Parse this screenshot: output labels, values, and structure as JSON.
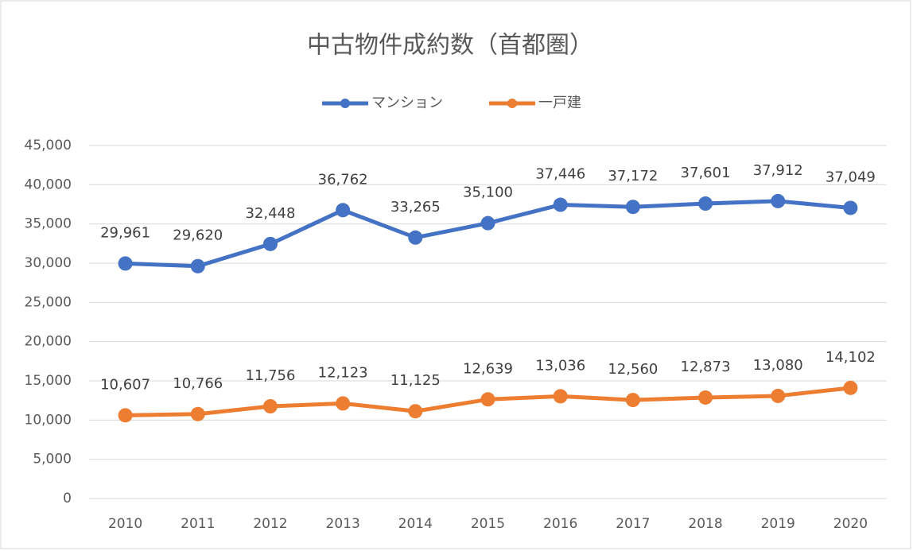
{
  "chart_data": {
    "type": "line",
    "title": "中古物件成約数（首都圏）",
    "categories": [
      "2010",
      "2011",
      "2012",
      "2013",
      "2014",
      "2015",
      "2016",
      "2017",
      "2018",
      "2019",
      "2020"
    ],
    "series": [
      {
        "name": "マンション",
        "color": "#4472c4",
        "values": [
          29961,
          29620,
          32448,
          36762,
          33265,
          35100,
          37446,
          37172,
          37601,
          37912,
          37049
        ],
        "value_labels": [
          "29,961",
          "29,620",
          "32,448",
          "36,762",
          "33,265",
          "35,100",
          "37,446",
          "37,172",
          "37,601",
          "37,912",
          "37,049"
        ]
      },
      {
        "name": "一戸建",
        "color": "#ed7d31",
        "values": [
          10607,
          10766,
          11756,
          12123,
          11125,
          12639,
          13036,
          12560,
          12873,
          13080,
          14102
        ],
        "value_labels": [
          "10,607",
          "10,766",
          "11,756",
          "12,123",
          "11,125",
          "12,639",
          "13,036",
          "12,560",
          "12,873",
          "13,080",
          "14,102"
        ]
      }
    ],
    "ylim": [
      0,
      45000
    ],
    "yticks": [
      0,
      {
        "value": 5000,
        "label": "5,000"
      },
      {
        "value": 10000,
        "label": "10,000"
      },
      {
        "value": 15000,
        "label": "15,000"
      },
      {
        "value": 20000,
        "label": "20,000"
      },
      {
        "value": 25000,
        "label": "25,000"
      },
      {
        "value": 30000,
        "label": "30,000"
      },
      {
        "value": 35000,
        "label": "35,000"
      },
      {
        "value": 40000,
        "label": "40,000"
      },
      {
        "value": 45000,
        "label": "45,000"
      }
    ],
    "grid": true,
    "legend": "top"
  }
}
